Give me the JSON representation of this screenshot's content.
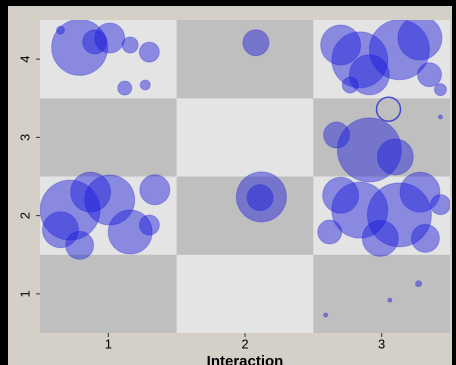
{
  "chart_data": {
    "type": "scatter",
    "x_label": "Interaction",
    "xlim": [
      0.5,
      3.5
    ],
    "ylim": [
      0.5,
      4.5
    ],
    "xticks": [
      1,
      2,
      3
    ],
    "yticks": [
      1,
      2,
      3,
      4
    ],
    "cell_colors": [
      "#e4e4e4",
      "#bfbfbf"
    ],
    "series": [
      {
        "color": "#1a1adc",
        "fill": true,
        "x": [
          0.79,
          0.9,
          1.01,
          1.3,
          1.16,
          1.12,
          1.27,
          0.65,
          2.08,
          3.13,
          2.84,
          2.7,
          3.28,
          2.91,
          3.35,
          2.77,
          3.43,
          2.91,
          3.1,
          2.67,
          3.43,
          0.72,
          1.01,
          0.65,
          1.16,
          0.87,
          1.34,
          1.3,
          0.79,
          2.12,
          2.11,
          2.84,
          3.13,
          2.7,
          3.28,
          2.99,
          3.32,
          2.62,
          3.43,
          3.27,
          2.59,
          3.06
        ],
        "y": [
          4.15,
          4.22,
          4.27,
          4.09,
          4.18,
          3.63,
          3.67,
          4.37,
          4.21,
          4.12,
          3.99,
          4.18,
          4.27,
          3.8,
          3.8,
          3.67,
          3.61,
          2.84,
          2.75,
          3.03,
          3.26,
          2.07,
          2.2,
          1.82,
          1.79,
          2.3,
          2.33,
          1.88,
          1.62,
          2.24,
          2.23,
          2.07,
          2.01,
          2.26,
          2.3,
          1.71,
          1.71,
          1.79,
          2.14,
          1.13,
          0.73,
          0.92
        ],
        "sizes": [
          28,
          12,
          15,
          10,
          8,
          7,
          5,
          4,
          13,
          30,
          28,
          20,
          22,
          20,
          12,
          8,
          6,
          32,
          18,
          13,
          2,
          30,
          25,
          18,
          22,
          20,
          15,
          10,
          14,
          25,
          13,
          28,
          32,
          18,
          20,
          18,
          14,
          12,
          10,
          3,
          2,
          2
        ]
      },
      {
        "color": "#3a3ad0",
        "fill": false,
        "x": [
          3.05
        ],
        "y": [
          3.36
        ],
        "sizes": [
          12
        ]
      }
    ]
  }
}
